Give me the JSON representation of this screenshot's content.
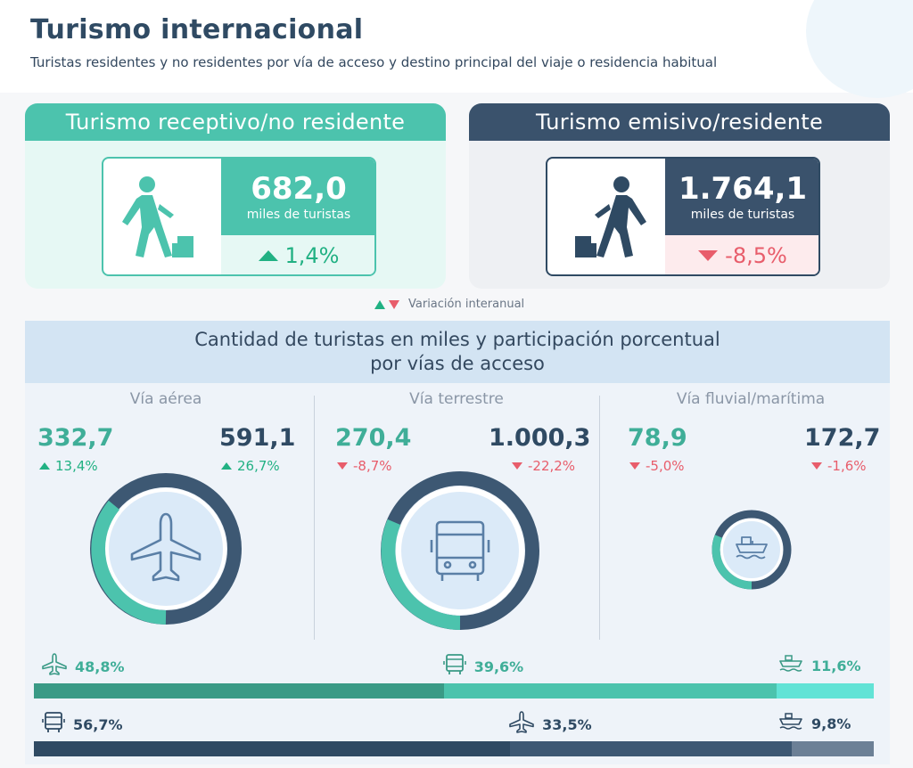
{
  "header": {
    "title": "Turismo internacional",
    "subtitle": "Turistas residentes y no residentes por vía de acceso y destino principal del viaje o residencia habitual"
  },
  "receptivo": {
    "title": "Turismo receptivo/no residente",
    "value": "682,0",
    "unit": "miles de turistas",
    "variation": "1,4%",
    "direction": "up",
    "icon": "traveler-with-luggage-icon"
  },
  "emisivo": {
    "title": "Turismo emisivo/residente",
    "value": "1.764,1",
    "unit": "miles de turistas",
    "variation": "-8,5%",
    "direction": "down",
    "icon": "traveler-with-luggage-icon"
  },
  "legend": {
    "label": "Variación interanual"
  },
  "access": {
    "title_line1": "Cantidad de turistas en miles y participación porcentual",
    "title_line2": "por vías de acceso",
    "aerea": {
      "title": "Vía aérea",
      "receptivo_value": "332,7",
      "receptivo_var": "13,4%",
      "receptivo_dir": "up",
      "emisivo_value": "591,1",
      "emisivo_var": "26,7%",
      "emisivo_dir": "up",
      "icon": "airplane-icon"
    },
    "terrestre": {
      "title": "Vía terrestre",
      "receptivo_value": "270,4",
      "receptivo_var": "-8,7%",
      "receptivo_dir": "down",
      "emisivo_value": "1.000,3",
      "emisivo_var": "-22,2%",
      "emisivo_dir": "down",
      "icon": "bus-icon"
    },
    "fluvial": {
      "title": "Vía fluvial/marítima",
      "receptivo_value": "78,9",
      "receptivo_var": "-5,0%",
      "receptivo_dir": "down",
      "emisivo_value": "172,7",
      "emisivo_var": "-1,6%",
      "emisivo_dir": "down",
      "icon": "ship-icon"
    }
  },
  "colors": {
    "teal": "#4cc3ad",
    "teal_dark": "#3a9a86",
    "teal_light": "#62e3d6",
    "navy": "#2f4a63",
    "navy_mid": "#3d5873",
    "navy_light": "#6c8096",
    "up": "#21b183",
    "down": "#e85d6b"
  },
  "chart_data": {
    "type": "bar",
    "categories": [
      "Vía aérea",
      "Vía terrestre",
      "Vía fluvial/marítima"
    ],
    "series": [
      {
        "name": "Turismo receptivo/no residente",
        "values": [
          48.8,
          39.6,
          11.6
        ],
        "labels": [
          "48,8%",
          "39,6%",
          "11,6%"
        ]
      },
      {
        "name": "Turismo emisivo/residente",
        "values": [
          33.5,
          56.7,
          9.8
        ],
        "labels": [
          "33,5%",
          "56,7%",
          "9,8%"
        ]
      }
    ]
  }
}
